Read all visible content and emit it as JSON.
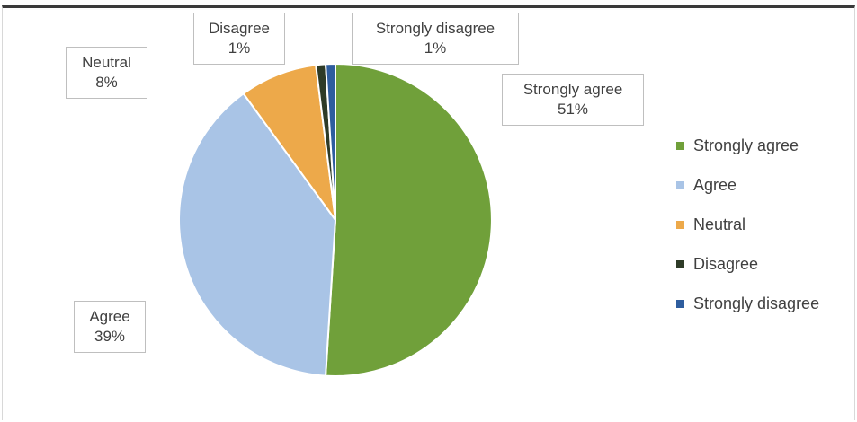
{
  "chart_data": {
    "type": "pie",
    "title": "",
    "categories": [
      "Strongly agree",
      "Agree",
      "Neutral",
      "Disagree",
      "Strongly disagree"
    ],
    "values": [
      51,
      39,
      8,
      1,
      1
    ],
    "unit": "%",
    "colors": [
      "#70A03A",
      "#A9C4E6",
      "#EDA94A",
      "#2E3B27",
      "#2E5D9E"
    ],
    "data_labels": [
      {
        "category": "Strongly agree",
        "value": "51%"
      },
      {
        "category": "Agree",
        "value": "39%"
      },
      {
        "category": "Neutral",
        "value": "8%"
      },
      {
        "category": "Disagree",
        "value": "1%"
      },
      {
        "category": "Strongly disagree",
        "value": "1%"
      }
    ],
    "legend_position": "right",
    "start_angle": "top, clockwise"
  }
}
